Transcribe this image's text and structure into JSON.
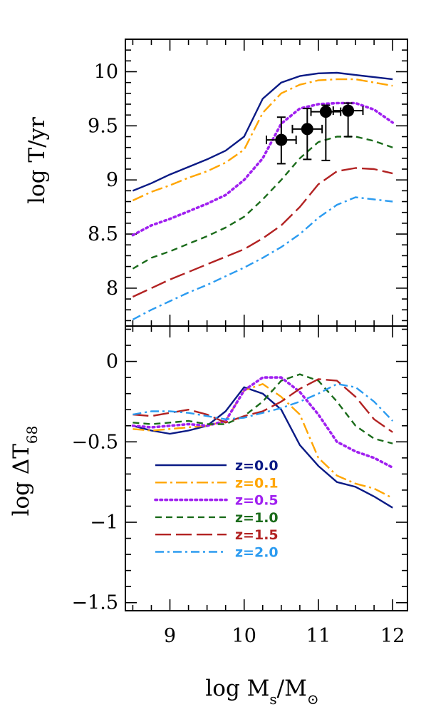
{
  "chart_data": {
    "type": "line",
    "xlabel": "log M_s/M_⊙",
    "xlim": [
      8.4,
      12.2
    ],
    "xticks": [
      "9",
      "10",
      "11",
      "12"
    ],
    "xtick_values": [
      9,
      10,
      11,
      12
    ],
    "series": [
      {
        "name": "z=0.0",
        "color": "#0a1a85",
        "dash": "solid"
      },
      {
        "name": "z=0.1",
        "color": "#ffa500",
        "dash": "dashdot"
      },
      {
        "name": "z=0.5",
        "color": "#a020f0",
        "dash": "dotted"
      },
      {
        "name": "z=1.0",
        "color": "#1a6b1a",
        "dash": "shortdash"
      },
      {
        "name": "z=1.5",
        "color": "#b22222",
        "dash": "longdash"
      },
      {
        "name": "z=2.0",
        "color": "#2b9bf0",
        "dash": "dashdotlong"
      }
    ],
    "panels": [
      {
        "id": "top",
        "ylabel": "log T/yr",
        "ylim": [
          7.65,
          10.3
        ],
        "yticks": [
          "8",
          "8.5",
          "9",
          "9.5",
          "10"
        ],
        "ytick_values": [
          8,
          8.5,
          9,
          9.5,
          10
        ],
        "x": [
          8.5,
          8.75,
          9.0,
          9.25,
          9.5,
          9.75,
          10.0,
          10.25,
          10.5,
          10.75,
          11.0,
          11.25,
          11.5,
          11.75,
          12.0
        ],
        "lines": [
          [
            8.9,
            8.97,
            9.05,
            9.12,
            9.19,
            9.27,
            9.4,
            9.75,
            9.9,
            9.96,
            9.985,
            9.99,
            9.97,
            9.95,
            9.93
          ],
          [
            8.81,
            8.89,
            8.95,
            9.02,
            9.08,
            9.16,
            9.28,
            9.62,
            9.8,
            9.88,
            9.92,
            9.93,
            9.93,
            9.9,
            9.87
          ],
          [
            8.49,
            8.58,
            8.64,
            8.71,
            8.78,
            8.86,
            9.0,
            9.2,
            9.52,
            9.66,
            9.7,
            9.71,
            9.71,
            9.65,
            9.53
          ],
          [
            8.18,
            8.28,
            8.34,
            8.41,
            8.48,
            8.56,
            8.66,
            8.82,
            9.0,
            9.2,
            9.35,
            9.4,
            9.4,
            9.36,
            9.3
          ],
          [
            7.92,
            8.0,
            8.08,
            8.15,
            8.22,
            8.29,
            8.36,
            8.46,
            8.58,
            8.75,
            8.96,
            9.08,
            9.11,
            9.1,
            9.06
          ],
          [
            7.71,
            7.8,
            7.88,
            7.96,
            8.03,
            8.11,
            8.19,
            8.28,
            8.38,
            8.5,
            8.65,
            8.77,
            8.84,
            8.82,
            8.8
          ]
        ],
        "points": {
          "x": [
            10.5,
            10.85,
            11.1,
            11.4
          ],
          "y": [
            9.37,
            9.47,
            9.63,
            9.64
          ],
          "xerr": [
            0.2,
            0.2,
            0.2,
            0.2
          ],
          "yerr_low": [
            0.22,
            0.28,
            0.45,
            0.24
          ],
          "yerr_high": [
            0.21,
            0.19,
            0.06,
            0.07
          ]
        }
      },
      {
        "id": "bottom",
        "ylabel": "log ΔT_68",
        "ylim": [
          -1.55,
          0.22
        ],
        "yticks": [
          "0",
          "−0.5",
          "−1",
          "−1.5"
        ],
        "ytick_values": [
          0,
          -0.5,
          -1,
          -1.5
        ],
        "x": [
          8.5,
          8.75,
          9.0,
          9.25,
          9.5,
          9.75,
          10.0,
          10.25,
          10.5,
          10.75,
          11.0,
          11.25,
          11.5,
          11.75,
          12.0
        ],
        "lines": [
          [
            -0.4,
            -0.43,
            -0.45,
            -0.43,
            -0.4,
            -0.31,
            -0.16,
            -0.2,
            -0.3,
            -0.52,
            -0.65,
            -0.75,
            -0.78,
            -0.84,
            -0.91
          ],
          [
            -0.42,
            -0.43,
            -0.42,
            -0.41,
            -0.4,
            -0.37,
            -0.18,
            -0.14,
            -0.22,
            -0.33,
            -0.6,
            -0.71,
            -0.76,
            -0.79,
            -0.85
          ],
          [
            -0.4,
            -0.41,
            -0.4,
            -0.39,
            -0.4,
            -0.37,
            -0.18,
            -0.1,
            -0.1,
            -0.19,
            -0.33,
            -0.5,
            -0.56,
            -0.6,
            -0.66
          ],
          [
            -0.38,
            -0.39,
            -0.38,
            -0.37,
            -0.39,
            -0.39,
            -0.34,
            -0.25,
            -0.12,
            -0.08,
            -0.12,
            -0.25,
            -0.4,
            -0.48,
            -0.51
          ],
          [
            -0.33,
            -0.34,
            -0.32,
            -0.3,
            -0.33,
            -0.38,
            -0.34,
            -0.31,
            -0.25,
            -0.17,
            -0.11,
            -0.12,
            -0.22,
            -0.36,
            -0.44
          ],
          [
            -0.33,
            -0.31,
            -0.31,
            -0.32,
            -0.34,
            -0.36,
            -0.35,
            -0.32,
            -0.29,
            -0.25,
            -0.2,
            -0.14,
            -0.16,
            -0.25,
            -0.37
          ]
        ]
      }
    ]
  }
}
